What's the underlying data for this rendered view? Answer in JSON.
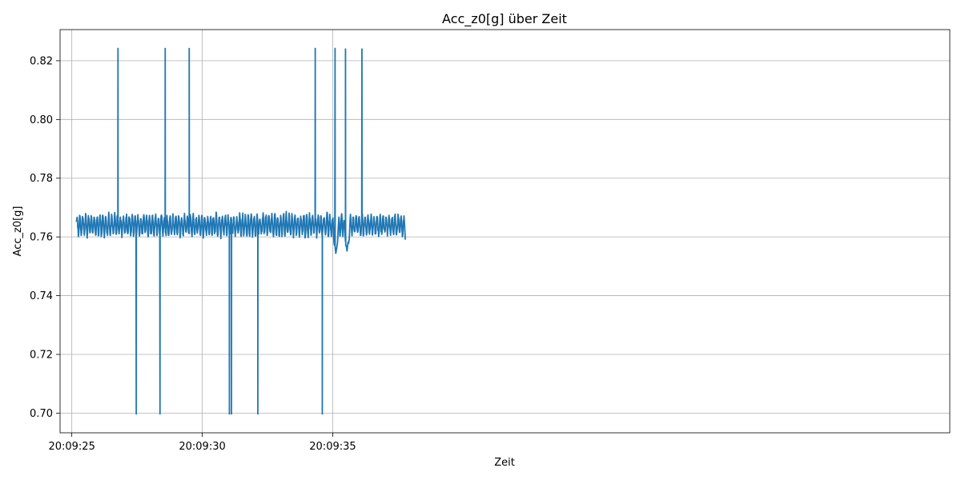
{
  "chart_data": {
    "type": "line",
    "title": "Acc_z0[g] über Zeit",
    "xlabel": "Zeit",
    "ylabel": "Acc_z0[g]",
    "x_unit": "seconds after 20:09:25",
    "xlim": [
      -0.45,
      33.65
    ],
    "ylim": [
      0.6933,
      0.8306
    ],
    "x_ticks": [
      {
        "value": 0,
        "label": "20:09:25"
      },
      {
        "value": 5,
        "label": "20:09:30"
      },
      {
        "value": 10,
        "label": "20:09:35"
      }
    ],
    "y_ticks": [
      {
        "value": 0.7,
        "label": "0.70"
      },
      {
        "value": 0.72,
        "label": "0.72"
      },
      {
        "value": 0.74,
        "label": "0.74"
      },
      {
        "value": 0.76,
        "label": "0.76"
      },
      {
        "value": 0.78,
        "label": "0.78"
      },
      {
        "value": 0.8,
        "label": "0.80"
      },
      {
        "value": 0.82,
        "label": "0.82"
      }
    ],
    "grid": true,
    "legend": "none",
    "series": [
      {
        "color": "#1f77b4",
        "t_range": [
          0.18,
          12.78
        ],
        "baseline": 0.764,
        "noise_amplitude": 0.0035,
        "spikes_up": [
          {
            "t": 1.77,
            "value": 0.8242
          },
          {
            "t": 3.58,
            "value": 0.8242
          },
          {
            "t": 4.5,
            "value": 0.8242
          },
          {
            "t": 9.33,
            "value": 0.8242
          },
          {
            "t": 10.09,
            "value": 0.8242
          },
          {
            "t": 10.49,
            "value": 0.824
          },
          {
            "t": 11.12,
            "value": 0.824
          }
        ],
        "spikes_down": [
          {
            "t": 2.47,
            "value": 0.6997
          },
          {
            "t": 3.38,
            "value": 0.6997
          },
          {
            "t": 6.12,
            "value": 0.6997
          },
          {
            "t": 6.04,
            "value": 0.6997
          },
          {
            "t": 7.13,
            "value": 0.6997
          },
          {
            "t": 9.6,
            "value": 0.6997
          }
        ],
        "dips": [
          {
            "t": 10.12,
            "value": 0.754
          },
          {
            "t": 10.55,
            "value": 0.755
          }
        ],
        "end_value": 0.7593
      }
    ]
  }
}
